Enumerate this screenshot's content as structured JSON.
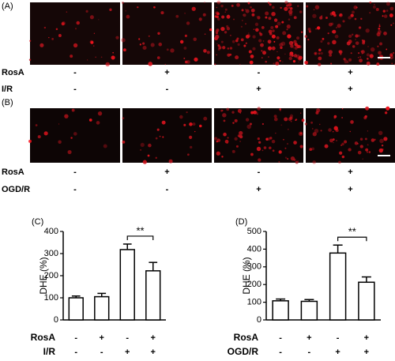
{
  "image_panels": [
    {
      "label": "(A)",
      "rows": [
        {
          "name": "RosA",
          "signs": [
            "-",
            "+",
            "-",
            "+"
          ]
        },
        {
          "name": "I/R",
          "signs": [
            "-",
            "-",
            "+",
            "+"
          ]
        }
      ]
    },
    {
      "label": "(B)",
      "rows": [
        {
          "name": "RosA",
          "signs": [
            "-",
            "+",
            "-",
            "+"
          ]
        },
        {
          "name": "OGD/R",
          "signs": [
            "-",
            "-",
            "+",
            "+"
          ]
        }
      ]
    }
  ],
  "chart_data": [
    {
      "type": "bar",
      "panel_label": "(C)",
      "y_label": "DHE  (%)",
      "color": "#ffffff",
      "values": [
        100,
        105,
        318,
        222
      ],
      "errors": [
        8,
        15,
        25,
        38
      ],
      "ylim": [
        0,
        400
      ],
      "yticks": [
        0,
        100,
        200,
        300,
        400
      ],
      "annotation": "**",
      "condition_rows": [
        {
          "name": "RosA",
          "signs": [
            "-",
            "+",
            "-",
            "+"
          ]
        },
        {
          "name": "I/R",
          "signs": [
            "-",
            "-",
            "+",
            "+"
          ]
        }
      ]
    },
    {
      "type": "bar",
      "panel_label": "(D)",
      "y_label": "DHE  (%)",
      "color": "#ffffff",
      "values": [
        108,
        105,
        378,
        213
      ],
      "errors": [
        10,
        10,
        45,
        30
      ],
      "ylim": [
        0,
        500
      ],
      "yticks": [
        0,
        100,
        200,
        300,
        400,
        500
      ],
      "annotation": "**",
      "condition_rows": [
        {
          "name": "RosA",
          "signs": [
            "-",
            "+",
            "-",
            "+"
          ]
        },
        {
          "name": "OGD/R",
          "signs": [
            "-",
            "-",
            "+",
            "+"
          ]
        }
      ]
    }
  ]
}
